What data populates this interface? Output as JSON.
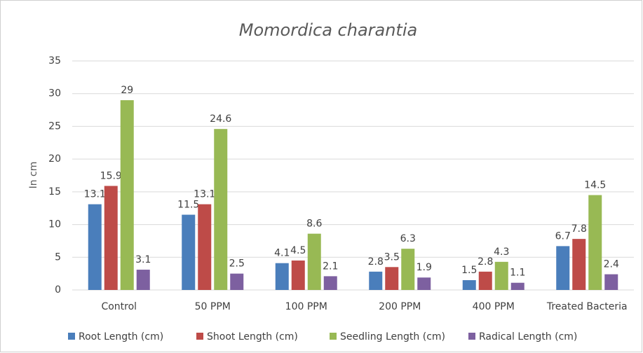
{
  "chart_data": {
    "type": "bar",
    "title": "Momordica charantia",
    "y_label": "In cm",
    "categories": [
      "Control",
      "50 PPM",
      "100 PPM",
      "200 PPM",
      "400 PPM",
      "Treated Bacteria"
    ],
    "series": [
      {
        "name": "Root Length (cm)",
        "color": "#4a7ebb",
        "values": [
          13.1,
          11.5,
          4.1,
          2.8,
          1.5,
          6.7
        ]
      },
      {
        "name": "Shoot Length (cm)",
        "color": "#be4b48",
        "values": [
          15.9,
          13.1,
          4.5,
          3.5,
          2.8,
          7.8
        ]
      },
      {
        "name": "Seedling Length (cm)",
        "color": "#98b954",
        "values": [
          29,
          24.6,
          8.6,
          6.3,
          4.3,
          14.5
        ]
      },
      {
        "name": "Radical Length (cm)",
        "color": "#7d60a0",
        "values": [
          3.1,
          2.5,
          2.1,
          1.9,
          1.1,
          2.4
        ]
      }
    ],
    "ylim": [
      0,
      35
    ],
    "yticks": [
      0,
      5,
      10,
      15,
      20,
      25,
      30,
      35
    ],
    "grid": true,
    "legend": "bottom"
  }
}
